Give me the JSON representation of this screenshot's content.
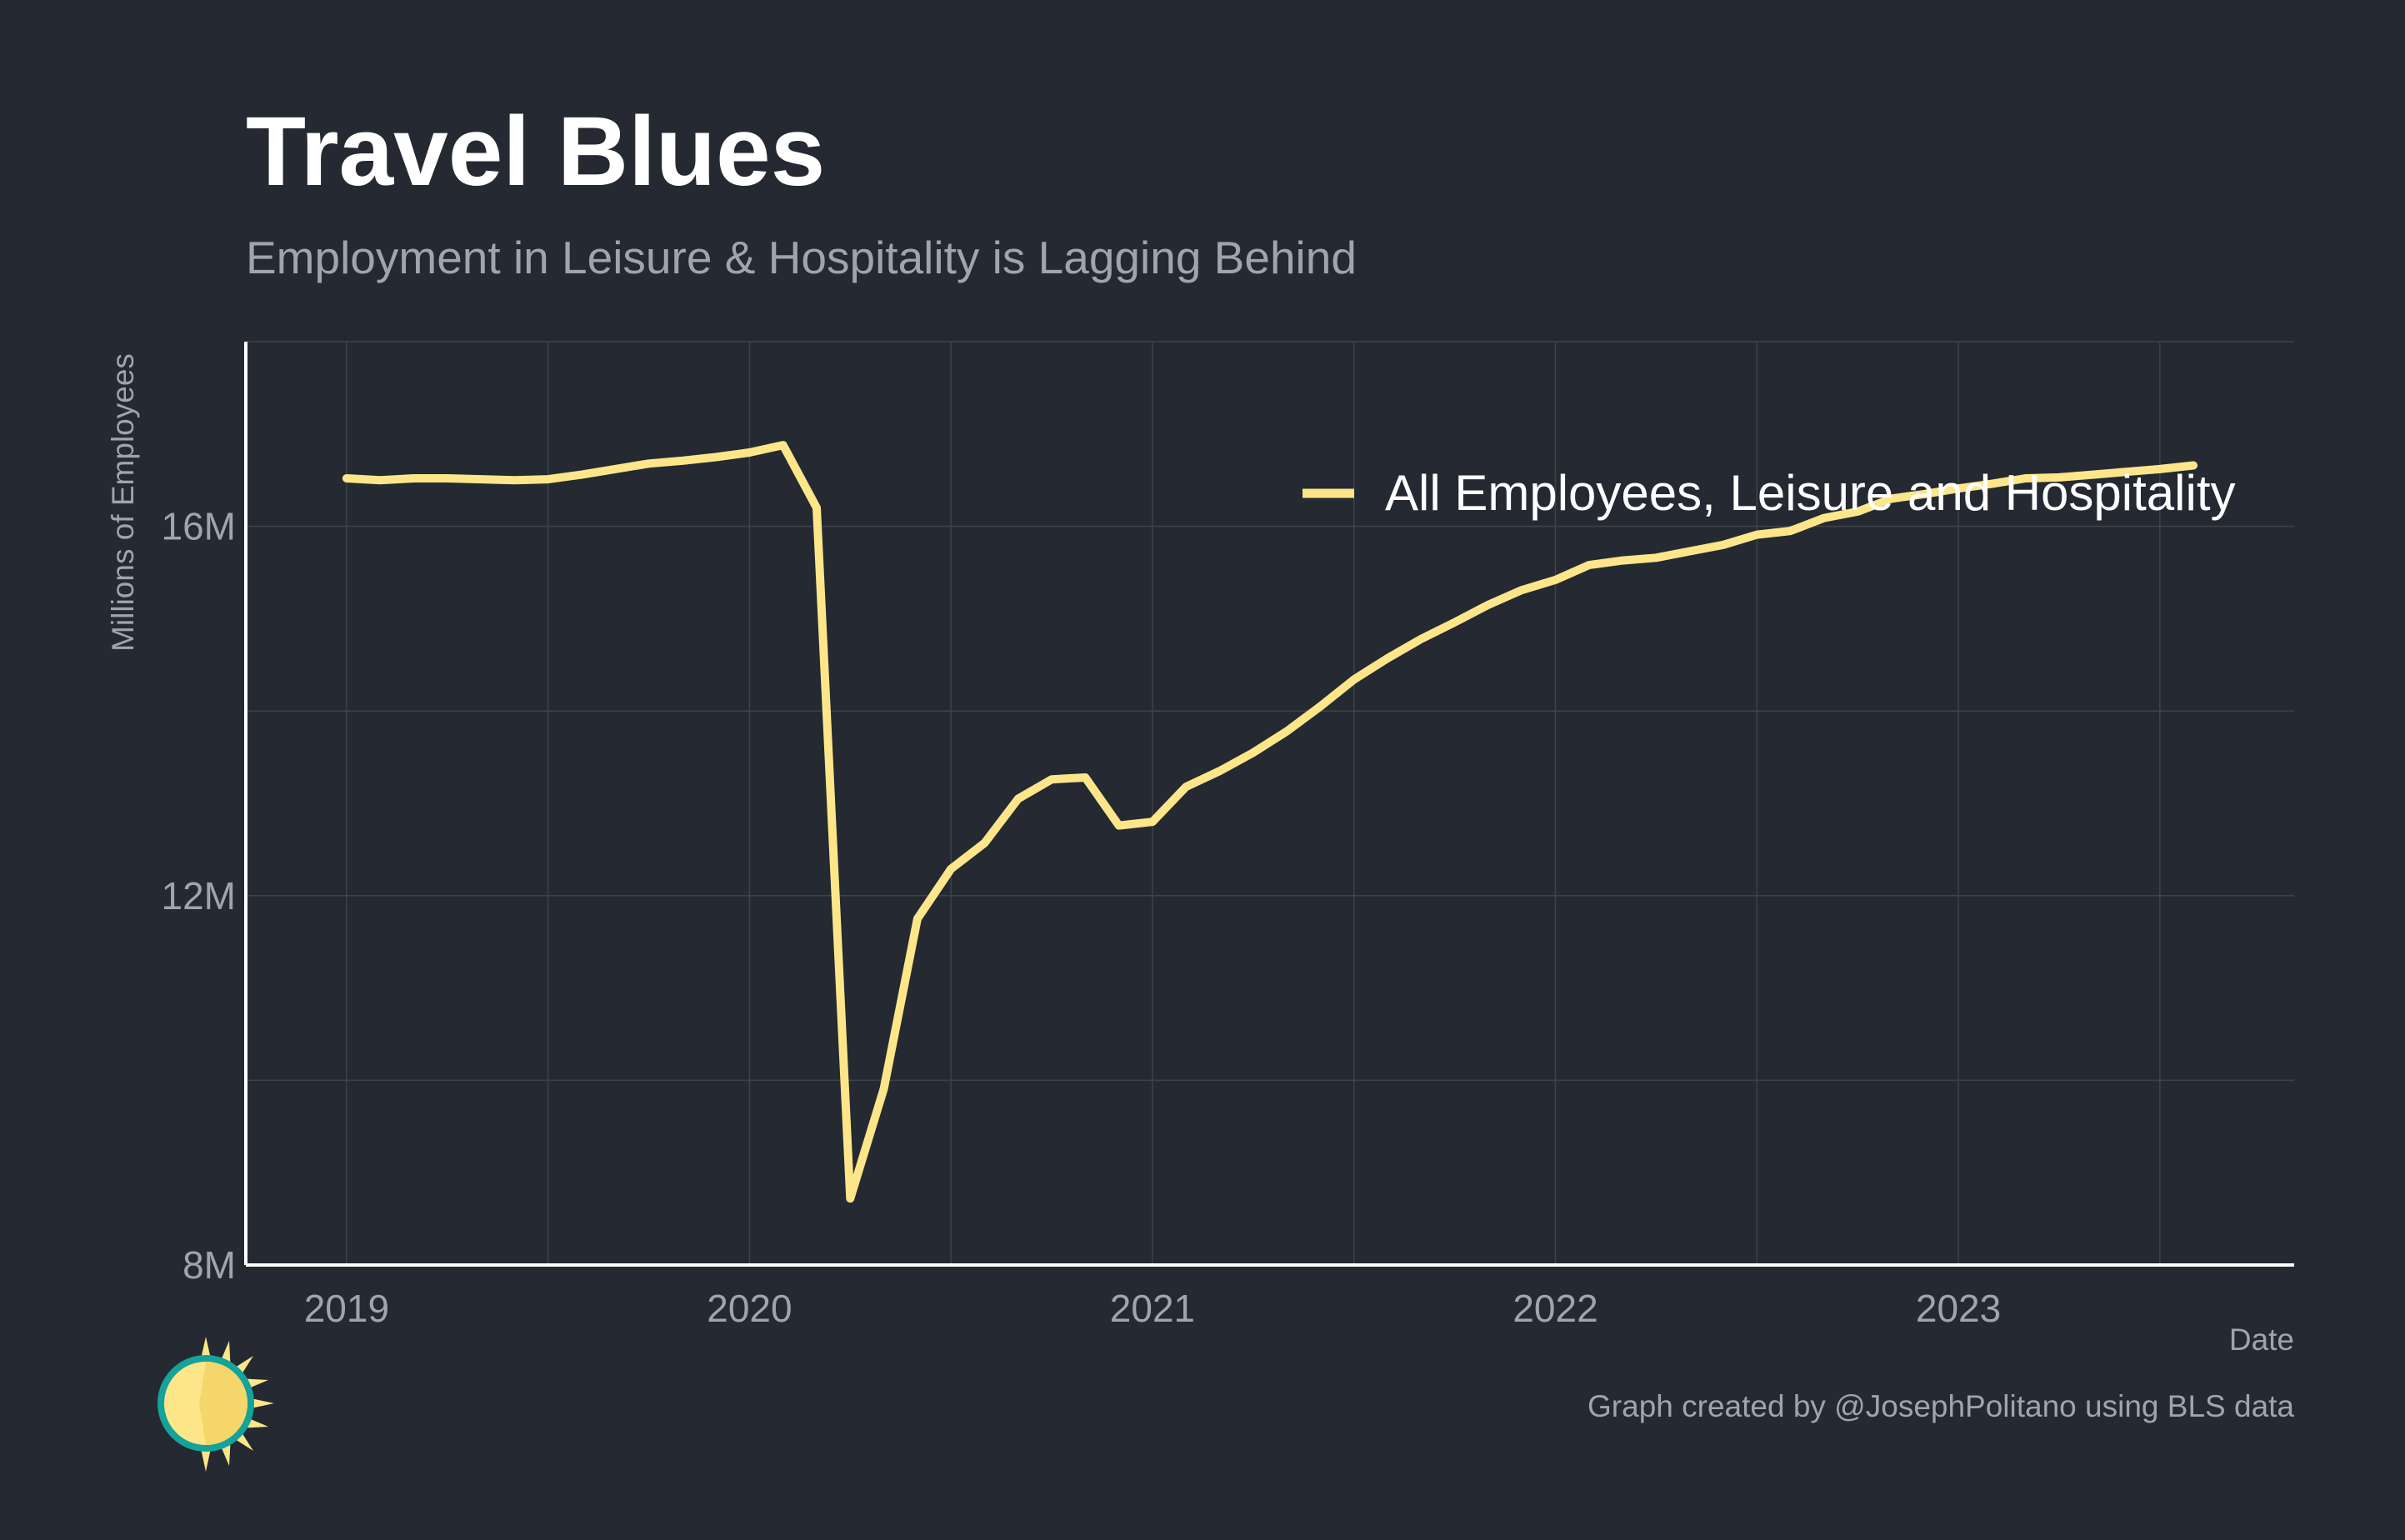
{
  "chart_data": {
    "type": "line",
    "title": "Travel Blues",
    "subtitle": "Employment in Leisure & Hospitality is Lagging Behind",
    "xlabel": "Date",
    "ylabel": "Millions of Employees",
    "caption": "Graph created by @JosephPolitano using BLS data",
    "x_ticks": [
      "2019",
      "2020",
      "2021",
      "2022",
      "2023"
    ],
    "y_ticks": [
      {
        "value": 8,
        "label": "8M"
      },
      {
        "value": 12,
        "label": "12M"
      },
      {
        "value": 16,
        "label": "16M"
      }
    ],
    "ylim": [
      8,
      18
    ],
    "xlim": [
      "2018-10",
      "2023-11"
    ],
    "grid": true,
    "legend_position": "top-right",
    "colors": {
      "background": "#252931",
      "line": "#fde68a",
      "grid": "#3e434b",
      "axis": "#ffffff",
      "muted_text": "#a0a4ab"
    },
    "logo": {
      "icon": "sun-logo-icon"
    },
    "series": [
      {
        "name": "All Employees, Leisure and Hospitality",
        "x": [
          "2019-01",
          "2019-02",
          "2019-03",
          "2019-04",
          "2019-05",
          "2019-06",
          "2019-07",
          "2019-08",
          "2019-09",
          "2019-10",
          "2019-11",
          "2019-12",
          "2020-01",
          "2020-02",
          "2020-03",
          "2020-04",
          "2020-05",
          "2020-06",
          "2020-07",
          "2020-08",
          "2020-09",
          "2020-10",
          "2020-11",
          "2020-12",
          "2021-01",
          "2021-02",
          "2021-03",
          "2021-04",
          "2021-05",
          "2021-06",
          "2021-07",
          "2021-08",
          "2021-09",
          "2021-10",
          "2021-11",
          "2021-12",
          "2022-01",
          "2022-02",
          "2022-03",
          "2022-04",
          "2022-05",
          "2022-06",
          "2022-07",
          "2022-08",
          "2022-09",
          "2022-10",
          "2022-11",
          "2022-12",
          "2023-01",
          "2023-02",
          "2023-03",
          "2023-04",
          "2023-05",
          "2023-06",
          "2023-07",
          "2023-08"
        ],
        "values": [
          16.52,
          16.5,
          16.52,
          16.52,
          16.51,
          16.5,
          16.51,
          16.56,
          16.62,
          16.68,
          16.71,
          16.75,
          16.8,
          16.88,
          16.2,
          8.72,
          9.91,
          11.75,
          12.29,
          12.57,
          13.05,
          13.26,
          13.28,
          12.76,
          12.8,
          13.18,
          13.35,
          13.55,
          13.78,
          14.05,
          14.34,
          14.57,
          14.78,
          14.96,
          15.15,
          15.31,
          15.42,
          15.58,
          15.63,
          15.66,
          15.73,
          15.8,
          15.91,
          15.95,
          16.09,
          16.16,
          16.3,
          16.35,
          16.41,
          16.46,
          16.52,
          16.53,
          16.56,
          16.59,
          16.62,
          16.66
        ]
      }
    ]
  }
}
